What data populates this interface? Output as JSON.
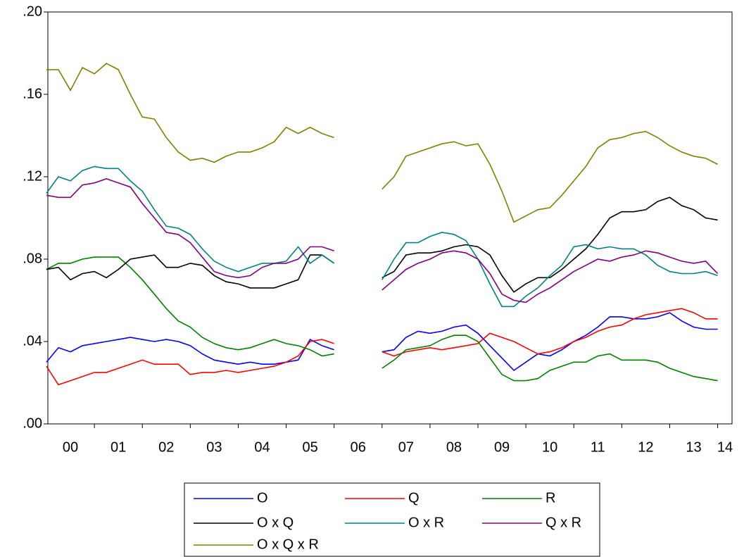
{
  "chart_data": {
    "type": "line",
    "x": [
      2000,
      2000.25,
      2000.5,
      2000.75,
      2001,
      2001.25,
      2001.5,
      2001.75,
      2002,
      2002.25,
      2002.5,
      2002.75,
      2003,
      2003.25,
      2003.5,
      2003.75,
      2004,
      2004.25,
      2004.5,
      2004.75,
      2005,
      2005.25,
      2005.5,
      2005.75,
      2006,
      2006.5,
      2007,
      2007.25,
      2007.5,
      2007.75,
      2008,
      2008.25,
      2008.5,
      2008.75,
      2009,
      2009.25,
      2009.5,
      2009.75,
      2010,
      2010.25,
      2010.5,
      2010.75,
      2011,
      2011.25,
      2011.5,
      2011.75,
      2012,
      2012.25,
      2012.5,
      2012.75,
      2013,
      2013.25,
      2013.5,
      2013.75,
      2014
    ],
    "xlim": [
      2000,
      2014.3
    ],
    "xticks": [
      {
        "value": 2000,
        "label": "00"
      },
      {
        "value": 2001,
        "label": "01"
      },
      {
        "value": 2002,
        "label": "02"
      },
      {
        "value": 2003,
        "label": "03"
      },
      {
        "value": 2004,
        "label": "04"
      },
      {
        "value": 2005,
        "label": "05"
      },
      {
        "value": 2006,
        "label": "06"
      },
      {
        "value": 2007,
        "label": "07"
      },
      {
        "value": 2008,
        "label": "08"
      },
      {
        "value": 2009,
        "label": "09"
      },
      {
        "value": 2010,
        "label": "10"
      },
      {
        "value": 2011,
        "label": "11"
      },
      {
        "value": 2012,
        "label": "12"
      },
      {
        "value": 2013,
        "label": "13"
      },
      {
        "value": 2014,
        "label": "14"
      }
    ],
    "ylim": [
      0,
      0.2
    ],
    "yticks": [
      {
        "value": 0,
        "label": ".00"
      },
      {
        "value": 0.04,
        "label": ".04"
      },
      {
        "value": 0.08,
        "label": ".08"
      },
      {
        "value": 0.12,
        "label": ".12"
      },
      {
        "value": 0.16,
        "label": ".16"
      },
      {
        "value": 0.2,
        "label": ".20"
      }
    ],
    "legend": "bottom",
    "series": [
      {
        "name": "O",
        "color": "#0000ff",
        "values": [
          0.03,
          0.037,
          0.035,
          0.038,
          0.039,
          0.04,
          0.041,
          0.042,
          0.041,
          0.04,
          0.041,
          0.04,
          0.038,
          0.034,
          0.031,
          0.03,
          0.029,
          0.03,
          0.029,
          0.029,
          0.03,
          0.031,
          0.041,
          0.038,
          0.036,
          null,
          0.035,
          0.036,
          0.042,
          0.045,
          0.044,
          0.045,
          0.047,
          0.048,
          0.044,
          0.038,
          0.032,
          0.026,
          0.03,
          0.034,
          0.033,
          0.036,
          0.04,
          0.043,
          0.047,
          0.052,
          0.052,
          0.051,
          0.051,
          0.052,
          0.054,
          0.05,
          0.047,
          0.046,
          0.046
        ]
      },
      {
        "name": "Q",
        "color": "#ff0000",
        "values": [
          0.028,
          0.019,
          0.021,
          0.023,
          0.025,
          0.025,
          0.027,
          0.029,
          0.031,
          0.029,
          0.029,
          0.029,
          0.024,
          0.025,
          0.025,
          0.026,
          0.025,
          0.026,
          0.027,
          0.028,
          0.03,
          0.033,
          0.04,
          0.041,
          0.039,
          null,
          0.035,
          0.033,
          0.035,
          0.036,
          0.037,
          0.036,
          0.037,
          0.038,
          0.039,
          0.044,
          0.042,
          0.04,
          0.037,
          0.034,
          0.035,
          0.037,
          0.04,
          0.042,
          0.045,
          0.047,
          0.048,
          0.051,
          0.053,
          0.054,
          0.055,
          0.056,
          0.054,
          0.051,
          0.051
        ]
      },
      {
        "name": "R",
        "color": "#008000",
        "values": [
          0.075,
          0.078,
          0.078,
          0.08,
          0.081,
          0.081,
          0.081,
          0.076,
          0.07,
          0.063,
          0.056,
          0.05,
          0.047,
          0.042,
          0.039,
          0.037,
          0.036,
          0.037,
          0.039,
          0.041,
          0.039,
          0.038,
          0.036,
          0.033,
          0.034,
          null,
          0.027,
          0.031,
          0.036,
          0.037,
          0.038,
          0.041,
          0.043,
          0.043,
          0.04,
          0.032,
          0.024,
          0.021,
          0.021,
          0.022,
          0.026,
          0.028,
          0.03,
          0.03,
          0.033,
          0.034,
          0.031,
          0.031,
          0.031,
          0.03,
          0.027,
          0.025,
          0.023,
          0.022,
          0.021
        ]
      },
      {
        "name": "O x Q",
        "color": "#000000",
        "values": [
          0.075,
          0.076,
          0.07,
          0.073,
          0.074,
          0.071,
          0.075,
          0.08,
          0.081,
          0.082,
          0.076,
          0.076,
          0.078,
          0.077,
          0.072,
          0.069,
          0.068,
          0.066,
          0.066,
          0.066,
          0.068,
          0.07,
          0.082,
          0.082,
          0.078,
          null,
          0.071,
          0.074,
          0.082,
          0.083,
          0.083,
          0.084,
          0.086,
          0.087,
          0.086,
          0.082,
          0.072,
          0.064,
          0.068,
          0.071,
          0.071,
          0.075,
          0.08,
          0.085,
          0.092,
          0.1,
          0.103,
          0.103,
          0.104,
          0.108,
          0.11,
          0.106,
          0.104,
          0.1,
          0.099
        ]
      },
      {
        "name": "O x R",
        "color": "#008080",
        "values": [
          0.112,
          0.12,
          0.118,
          0.123,
          0.125,
          0.124,
          0.124,
          0.118,
          0.113,
          0.104,
          0.096,
          0.095,
          0.092,
          0.085,
          0.079,
          0.076,
          0.074,
          0.076,
          0.078,
          0.078,
          0.079,
          0.086,
          0.078,
          0.082,
          0.078,
          null,
          0.07,
          0.08,
          0.088,
          0.088,
          0.091,
          0.093,
          0.092,
          0.089,
          0.08,
          0.068,
          0.057,
          0.057,
          0.062,
          0.066,
          0.072,
          0.077,
          0.086,
          0.087,
          0.085,
          0.086,
          0.085,
          0.085,
          0.082,
          0.077,
          0.074,
          0.073,
          0.073,
          0.074,
          0.072
        ]
      },
      {
        "name": "Q x R",
        "color": "#800080",
        "values": [
          0.111,
          0.11,
          0.11,
          0.116,
          0.117,
          0.119,
          0.117,
          0.115,
          0.107,
          0.1,
          0.093,
          0.092,
          0.088,
          0.081,
          0.074,
          0.072,
          0.071,
          0.072,
          0.076,
          0.078,
          0.078,
          0.08,
          0.086,
          0.086,
          0.084,
          null,
          0.065,
          0.07,
          0.075,
          0.078,
          0.08,
          0.083,
          0.084,
          0.083,
          0.08,
          0.073,
          0.063,
          0.06,
          0.059,
          0.063,
          0.066,
          0.07,
          0.074,
          0.077,
          0.08,
          0.079,
          0.081,
          0.082,
          0.084,
          0.083,
          0.081,
          0.079,
          0.078,
          0.079,
          0.073
        ]
      },
      {
        "name": "O x Q x R",
        "color": "#808000",
        "values": [
          0.172,
          0.172,
          0.162,
          0.173,
          0.17,
          0.175,
          0.172,
          0.16,
          0.149,
          0.148,
          0.139,
          0.132,
          0.128,
          0.129,
          0.127,
          0.13,
          0.132,
          0.132,
          0.134,
          0.137,
          0.144,
          0.141,
          0.144,
          0.141,
          0.139,
          null,
          0.114,
          0.12,
          0.13,
          0.132,
          0.134,
          0.136,
          0.137,
          0.135,
          0.136,
          0.126,
          0.113,
          0.098,
          0.101,
          0.104,
          0.105,
          0.111,
          0.118,
          0.125,
          0.134,
          0.138,
          0.139,
          0.141,
          0.142,
          0.139,
          0.135,
          0.132,
          0.13,
          0.129,
          0.126
        ]
      }
    ]
  }
}
